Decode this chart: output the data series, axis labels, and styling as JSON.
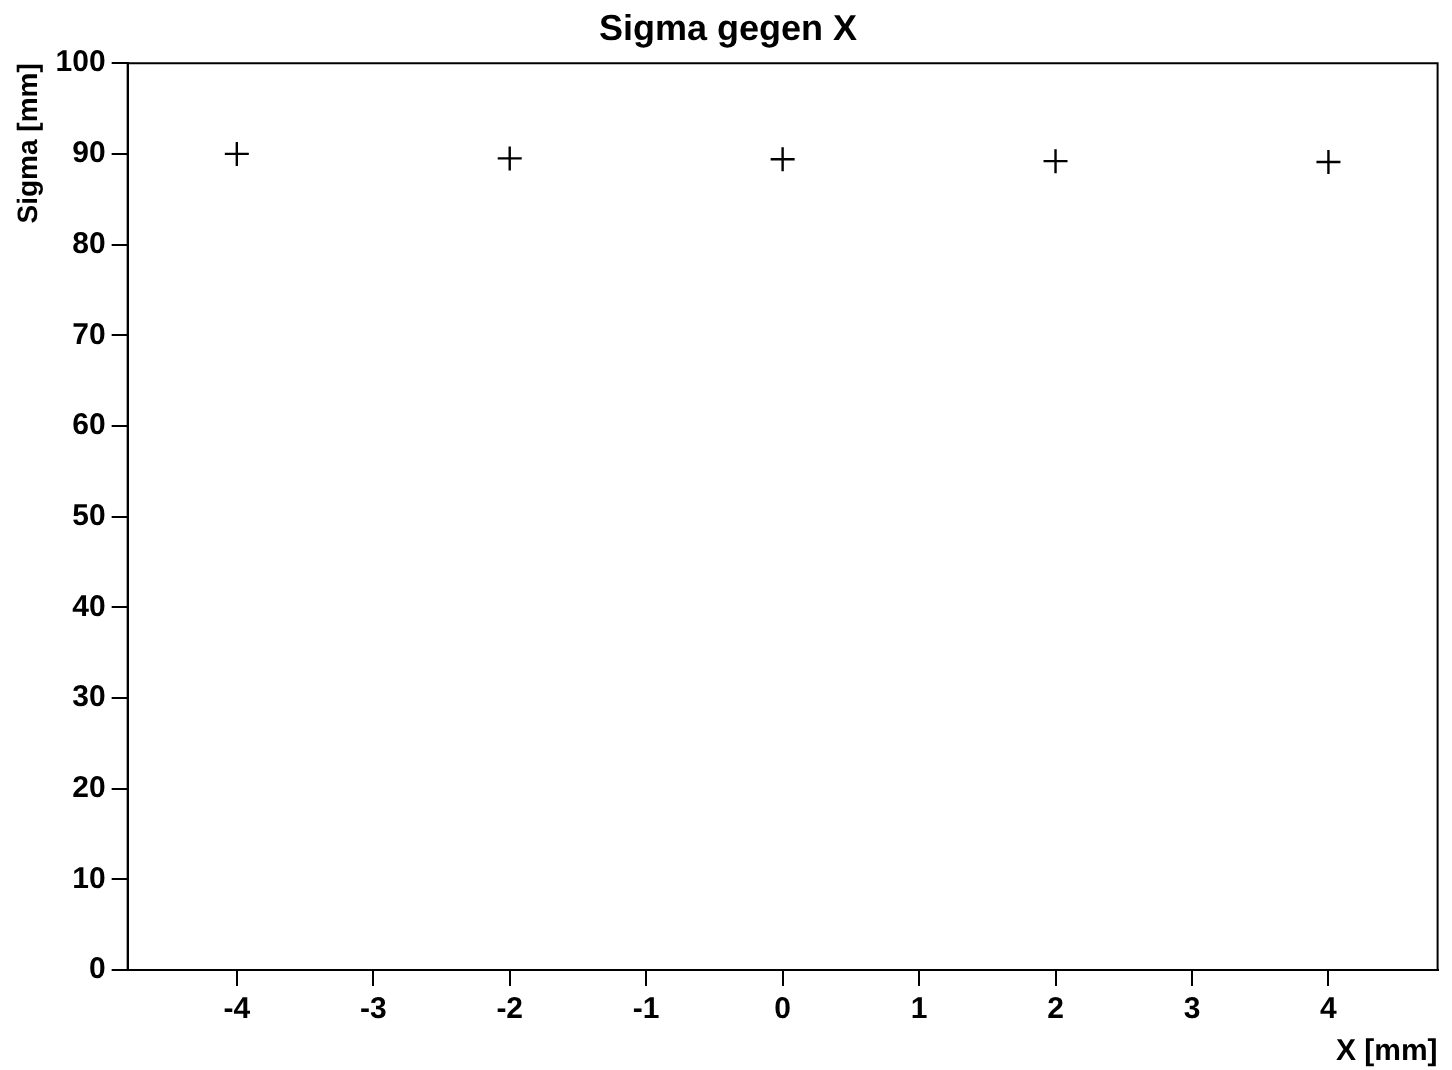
{
  "chart_data": {
    "type": "scatter",
    "title": "Sigma gegen X",
    "xlabel": "X [mm]",
    "ylabel": "Sigma [mm]",
    "x": [
      -4,
      -2,
      0,
      2,
      4
    ],
    "series": [
      {
        "color": "#000000",
        "values": [
          90,
          89.5,
          89.4,
          89.2,
          89.1
        ]
      }
    ],
    "xlim": [
      -4.8,
      4.8
    ],
    "xticks": [
      -4,
      -3,
      -2,
      -1,
      0,
      1,
      2,
      3,
      4
    ],
    "ylim": [
      0,
      100
    ],
    "yticks": [
      0,
      10,
      20,
      30,
      40,
      50,
      60,
      70,
      80,
      90,
      100
    ],
    "grid": false,
    "legend": false,
    "marker": "cross"
  }
}
